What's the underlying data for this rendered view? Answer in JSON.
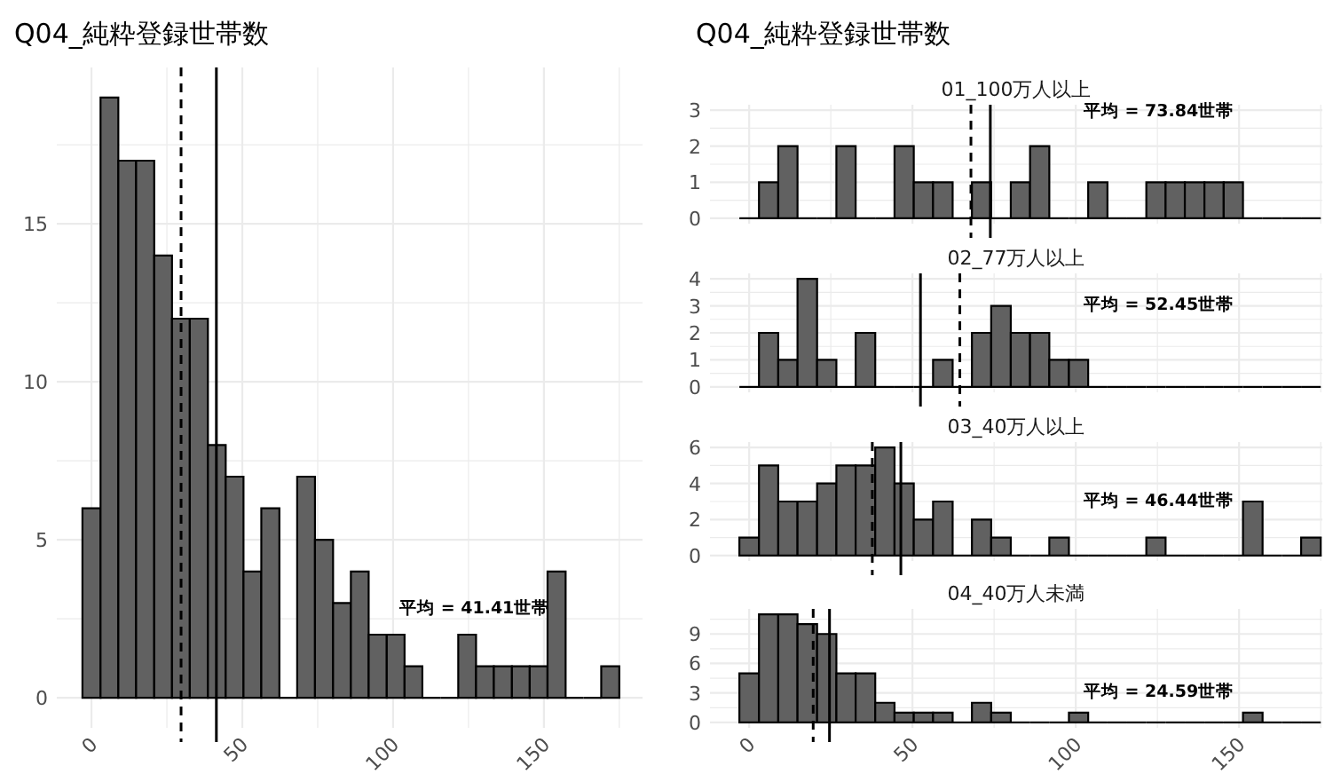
{
  "chart_data": [
    {
      "type": "histogram",
      "title": "Q04_純粋登録世帯数",
      "color": "#616161",
      "grid": true,
      "bins": [
        -3.0,
        3.0,
        8.9,
        14.8,
        20.8,
        26.7,
        32.6,
        38.6,
        44.5,
        50.4,
        56.3,
        62.3,
        68.2,
        74.1,
        80.1,
        86.0,
        91.9,
        97.9,
        103.8,
        109.7,
        115.7,
        121.6,
        127.5,
        133.4,
        139.4,
        145.3,
        151.2,
        157.2,
        163.1,
        169.0,
        175.0
      ],
      "values": [
        6,
        19,
        17,
        17,
        14,
        12,
        12,
        8,
        7,
        4,
        6,
        0,
        7,
        5,
        3,
        4,
        2,
        2,
        1,
        0,
        0,
        2,
        1,
        1,
        1,
        1,
        4,
        0,
        0,
        1
      ],
      "xlim": [
        -11.5,
        182.7
      ],
      "xticks": [
        0,
        {
          "value": 25,
          "label": null
        },
        50,
        {
          "value": 75,
          "label": null
        },
        100,
        {
          "value": 125,
          "label": null
        },
        150,
        {
          "value": 175,
          "label": null
        }
      ],
      "ylim": [
        -0.95,
        19.95
      ],
      "yticks": [
        0,
        {
          "value": 2.5,
          "label": null
        },
        5,
        {
          "value": 7.5,
          "label": null
        },
        10,
        {
          "value": 12.5,
          "label": null
        },
        15,
        {
          "value": 17.5,
          "label": null
        }
      ],
      "ref_lines": [
        {
          "axis": "x",
          "value": 29.7,
          "line_style": "dashed",
          "color": "#000000"
        },
        {
          "axis": "x",
          "value": 41.41,
          "line_style": "solid",
          "color": "#000000"
        }
      ],
      "annotations": [
        "平均 = 41.41世帯"
      ]
    },
    {
      "type": "histogram",
      "title": "Q04_純粋登録世帯数",
      "subtitle": "01_100万人以上",
      "color": "#616161",
      "grid": true,
      "tick_labels": "y",
      "bins": [
        -3.0,
        3.0,
        8.9,
        14.8,
        20.8,
        26.7,
        32.6,
        38.6,
        44.5,
        50.4,
        56.3,
        62.3,
        68.2,
        74.1,
        80.1,
        86.0,
        91.9,
        97.9,
        103.8,
        109.7,
        115.7,
        121.6,
        127.5,
        133.4,
        139.4,
        145.3,
        151.2,
        157.2,
        163.1,
        169.0,
        175.0
      ],
      "values": [
        0,
        1,
        2,
        0,
        0,
        2,
        0,
        0,
        2,
        1,
        1,
        0,
        1,
        0,
        1,
        2,
        0,
        0,
        1,
        0,
        0,
        1,
        1,
        1,
        1,
        1,
        0,
        0,
        0,
        0
      ],
      "xlim": [
        -12,
        175.5
      ],
      "xticks": [
        0,
        {
          "value": 25,
          "label": null
        },
        50,
        {
          "value": 75,
          "label": null
        },
        100,
        {
          "value": 125,
          "label": null
        },
        150,
        {
          "value": 175,
          "label": null
        }
      ],
      "ylim": [
        -0.15,
        3.15
      ],
      "yticks": [
        0,
        {
          "value": 0.5,
          "label": null
        },
        1,
        {
          "value": 1.5,
          "label": null
        },
        2,
        {
          "value": 2.5,
          "label": null
        },
        3
      ],
      "ref_lines": [
        {
          "axis": "x",
          "value": 67.9,
          "line_style": "dashed",
          "color": "#000000"
        },
        {
          "axis": "x",
          "value": 73.84,
          "line_style": "solid",
          "color": "#000000"
        }
      ],
      "annotations": [
        "平均 = 73.84世帯"
      ]
    },
    {
      "type": "histogram",
      "subtitle": "02_77万人以上",
      "color": "#616161",
      "grid": true,
      "tick_labels": "y",
      "bins": [
        -3.0,
        3.0,
        8.9,
        14.8,
        20.8,
        26.7,
        32.6,
        38.6,
        44.5,
        50.4,
        56.3,
        62.3,
        68.2,
        74.1,
        80.1,
        86.0,
        91.9,
        97.9,
        103.8,
        109.7,
        115.7,
        121.6,
        127.5,
        133.4,
        139.4,
        145.3,
        151.2,
        157.2,
        163.1,
        169.0,
        175.0
      ],
      "values": [
        0,
        2,
        1,
        4,
        1,
        0,
        2,
        0,
        0,
        0,
        1,
        0,
        2,
        3,
        2,
        2,
        1,
        1,
        0,
        0,
        0,
        0,
        0,
        0,
        0,
        0,
        0,
        0,
        0,
        0
      ],
      "xlim": [
        -12,
        175.5
      ],
      "xticks": [
        0,
        {
          "value": 25,
          "label": null
        },
        50,
        {
          "value": 75,
          "label": null
        },
        100,
        {
          "value": 125,
          "label": null
        },
        150,
        {
          "value": 175,
          "label": null
        }
      ],
      "ylim": [
        -0.2,
        4.2
      ],
      "yticks": [
        0,
        {
          "value": 0.5,
          "label": null
        },
        1,
        {
          "value": 1.5,
          "label": null
        },
        2,
        {
          "value": 2.5,
          "label": null
        },
        3,
        {
          "value": 3.5,
          "label": null
        },
        4
      ],
      "ref_lines": [
        {
          "axis": "x",
          "value": 64.5,
          "line_style": "dashed",
          "color": "#000000"
        },
        {
          "axis": "x",
          "value": 52.45,
          "line_style": "solid",
          "color": "#000000"
        }
      ],
      "annotations": [
        "平均 = 52.45世帯"
      ]
    },
    {
      "type": "histogram",
      "subtitle": "03_40万人以上",
      "color": "#616161",
      "grid": true,
      "tick_labels": "y",
      "bins": [
        -3.0,
        3.0,
        8.9,
        14.8,
        20.8,
        26.7,
        32.6,
        38.6,
        44.5,
        50.4,
        56.3,
        62.3,
        68.2,
        74.1,
        80.1,
        86.0,
        91.9,
        97.9,
        103.8,
        109.7,
        115.7,
        121.6,
        127.5,
        133.4,
        139.4,
        145.3,
        151.2,
        157.2,
        163.1,
        169.0,
        175.0
      ],
      "values": [
        1,
        5,
        3,
        3,
        4,
        5,
        5,
        6,
        4,
        2,
        3,
        0,
        2,
        1,
        0,
        0,
        1,
        0,
        0,
        0,
        0,
        1,
        0,
        0,
        0,
        0,
        3,
        0,
        0,
        1
      ],
      "xlim": [
        -12,
        175.5
      ],
      "xticks": [
        0,
        {
          "value": 25,
          "label": null
        },
        50,
        {
          "value": 75,
          "label": null
        },
        100,
        {
          "value": 125,
          "label": null
        },
        150,
        {
          "value": 175,
          "label": null
        }
      ],
      "ylim": [
        -0.3,
        6.3
      ],
      "yticks": [
        0,
        {
          "value": 1,
          "label": null
        },
        2,
        {
          "value": 3,
          "label": null
        },
        4,
        {
          "value": 5,
          "label": null
        },
        6
      ],
      "ref_lines": [
        {
          "axis": "x",
          "value": 37.7,
          "line_style": "dashed",
          "color": "#000000"
        },
        {
          "axis": "x",
          "value": 46.44,
          "line_style": "solid",
          "color": "#000000"
        }
      ],
      "annotations": [
        "平均 = 46.44世帯"
      ]
    },
    {
      "type": "histogram",
      "subtitle": "04_40万人未満",
      "color": "#616161",
      "grid": true,
      "bins": [
        -3.0,
        3.0,
        8.9,
        14.8,
        20.8,
        26.7,
        32.6,
        38.6,
        44.5,
        50.4,
        56.3,
        62.3,
        68.2,
        74.1,
        80.1,
        86.0,
        91.9,
        97.9,
        103.8,
        109.7,
        115.7,
        121.6,
        127.5,
        133.4,
        139.4,
        145.3,
        151.2,
        157.2,
        163.1,
        169.0,
        175.0
      ],
      "values": [
        5,
        11,
        11,
        10,
        9,
        5,
        5,
        2,
        1,
        1,
        1,
        0,
        2,
        1,
        0,
        0,
        0,
        1,
        0,
        0,
        0,
        0,
        0,
        0,
        0,
        0,
        1,
        0,
        0,
        0
      ],
      "xlim": [
        -12,
        175.5
      ],
      "xticks": [
        0,
        {
          "value": 25,
          "label": null
        },
        50,
        {
          "value": 75,
          "label": null
        },
        100,
        {
          "value": 125,
          "label": null
        },
        150,
        {
          "value": 175,
          "label": null
        }
      ],
      "ylim": [
        -0.55,
        11.55
      ],
      "yticks": [
        0,
        {
          "value": 1.5,
          "label": null
        },
        3,
        {
          "value": 4.5,
          "label": null
        },
        6,
        {
          "value": 7.5,
          "label": null
        },
        9,
        {
          "value": 10.5,
          "label": null
        }
      ],
      "ref_lines": [
        {
          "axis": "x",
          "value": 19.6,
          "line_style": "dashed",
          "color": "#000000"
        },
        {
          "axis": "x",
          "value": 24.59,
          "line_style": "solid",
          "color": "#000000"
        }
      ],
      "annotations": [
        "平均 = 24.59世帯"
      ]
    }
  ]
}
